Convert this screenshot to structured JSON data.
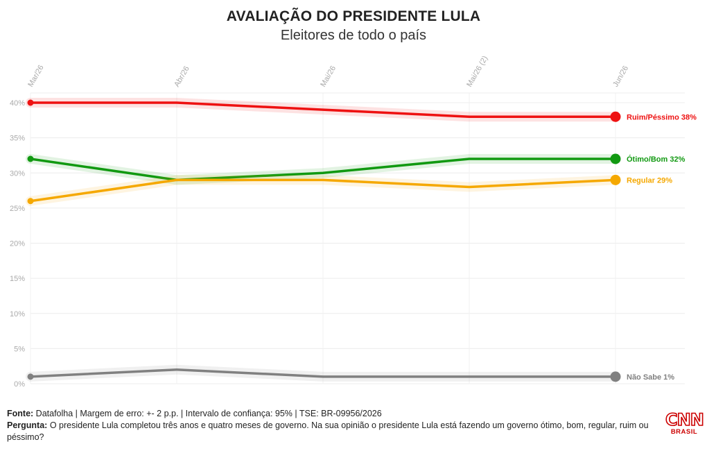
{
  "title": "AVALIAÇÃO DO PRESIDENTE LULA",
  "subtitle": "Eleitores de todo o país",
  "chart_data": {
    "type": "line",
    "categories": [
      "Mar/26",
      "Abr/26",
      "Mai/26",
      "Mai/26 (2)",
      "Jun/26"
    ],
    "ylim": [
      0,
      40
    ],
    "yticks": [
      0,
      5,
      10,
      15,
      20,
      25,
      30,
      35,
      40
    ],
    "ytick_labels": [
      "0%",
      "5%",
      "10%",
      "15%",
      "20%",
      "25%",
      "30%",
      "35%",
      "40%"
    ],
    "grid": true,
    "series": [
      {
        "name": "Ruim/Péssimo",
        "end_label": "Ruim/Péssimo 38%",
        "color": "#ee1111",
        "values": [
          40,
          40,
          39,
          38,
          38
        ]
      },
      {
        "name": "Ótimo/Bom",
        "end_label": "Ótimo/Bom 32%",
        "color": "#119911",
        "values": [
          32,
          29,
          30,
          32,
          32
        ]
      },
      {
        "name": "Regular",
        "end_label": "Regular 29%",
        "color": "#f5a800",
        "values": [
          26,
          29,
          29,
          28,
          29
        ]
      },
      {
        "name": "Não Sabe",
        "end_label": "Não Sabe 1%",
        "color": "#808080",
        "values": [
          1,
          2,
          1,
          1,
          1
        ]
      }
    ]
  },
  "footer": {
    "source_label": "Fonte:",
    "source_text": "Datafolha | Margem de erro: +- 2 p.p. | Intervalo de confiança: 95% | TSE: BR-09956/2026",
    "question_label": "Pergunta:",
    "question_text": "O presidente Lula completou três anos e quatro meses de governo. Na sua opinião o presidente Lula está fazendo um governo ótimo, bom, regular, ruim ou péssimo?"
  },
  "logo": {
    "mark": "CNN",
    "sub": "BRASIL",
    "color": "#cc0000"
  }
}
